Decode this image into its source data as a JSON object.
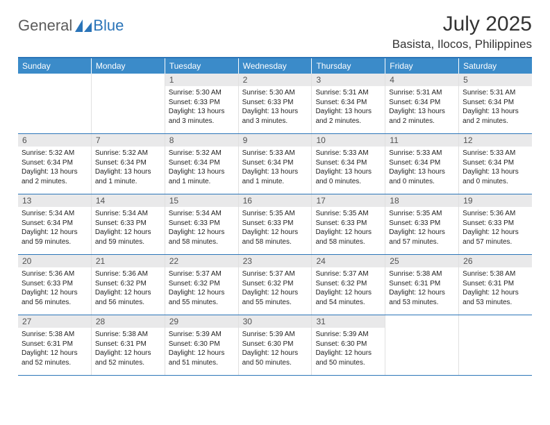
{
  "brand": {
    "part1": "General",
    "part2": "Blue"
  },
  "title": "July 2025",
  "location": "Basista, Ilocos, Philippines",
  "colors": {
    "header_bg": "#3b8bc9",
    "accent_border": "#2a74b8",
    "daynum_bg": "#e9e9ea",
    "daynum_fg": "#525252",
    "text": "#222222",
    "logo_gray": "#5b5b5b",
    "logo_blue": "#2a74b8"
  },
  "weekdays": [
    "Sunday",
    "Monday",
    "Tuesday",
    "Wednesday",
    "Thursday",
    "Friday",
    "Saturday"
  ],
  "weeks": [
    [
      null,
      null,
      {
        "n": "1",
        "sr": "5:30 AM",
        "ss": "6:33 PM",
        "dl": "13 hours and 3 minutes."
      },
      {
        "n": "2",
        "sr": "5:30 AM",
        "ss": "6:33 PM",
        "dl": "13 hours and 3 minutes."
      },
      {
        "n": "3",
        "sr": "5:31 AM",
        "ss": "6:34 PM",
        "dl": "13 hours and 2 minutes."
      },
      {
        "n": "4",
        "sr": "5:31 AM",
        "ss": "6:34 PM",
        "dl": "13 hours and 2 minutes."
      },
      {
        "n": "5",
        "sr": "5:31 AM",
        "ss": "6:34 PM",
        "dl": "13 hours and 2 minutes."
      }
    ],
    [
      {
        "n": "6",
        "sr": "5:32 AM",
        "ss": "6:34 PM",
        "dl": "13 hours and 2 minutes."
      },
      {
        "n": "7",
        "sr": "5:32 AM",
        "ss": "6:34 PM",
        "dl": "13 hours and 1 minute."
      },
      {
        "n": "8",
        "sr": "5:32 AM",
        "ss": "6:34 PM",
        "dl": "13 hours and 1 minute."
      },
      {
        "n": "9",
        "sr": "5:33 AM",
        "ss": "6:34 PM",
        "dl": "13 hours and 1 minute."
      },
      {
        "n": "10",
        "sr": "5:33 AM",
        "ss": "6:34 PM",
        "dl": "13 hours and 0 minutes."
      },
      {
        "n": "11",
        "sr": "5:33 AM",
        "ss": "6:34 PM",
        "dl": "13 hours and 0 minutes."
      },
      {
        "n": "12",
        "sr": "5:33 AM",
        "ss": "6:34 PM",
        "dl": "13 hours and 0 minutes."
      }
    ],
    [
      {
        "n": "13",
        "sr": "5:34 AM",
        "ss": "6:34 PM",
        "dl": "12 hours and 59 minutes."
      },
      {
        "n": "14",
        "sr": "5:34 AM",
        "ss": "6:33 PM",
        "dl": "12 hours and 59 minutes."
      },
      {
        "n": "15",
        "sr": "5:34 AM",
        "ss": "6:33 PM",
        "dl": "12 hours and 58 minutes."
      },
      {
        "n": "16",
        "sr": "5:35 AM",
        "ss": "6:33 PM",
        "dl": "12 hours and 58 minutes."
      },
      {
        "n": "17",
        "sr": "5:35 AM",
        "ss": "6:33 PM",
        "dl": "12 hours and 58 minutes."
      },
      {
        "n": "18",
        "sr": "5:35 AM",
        "ss": "6:33 PM",
        "dl": "12 hours and 57 minutes."
      },
      {
        "n": "19",
        "sr": "5:36 AM",
        "ss": "6:33 PM",
        "dl": "12 hours and 57 minutes."
      }
    ],
    [
      {
        "n": "20",
        "sr": "5:36 AM",
        "ss": "6:33 PM",
        "dl": "12 hours and 56 minutes."
      },
      {
        "n": "21",
        "sr": "5:36 AM",
        "ss": "6:32 PM",
        "dl": "12 hours and 56 minutes."
      },
      {
        "n": "22",
        "sr": "5:37 AM",
        "ss": "6:32 PM",
        "dl": "12 hours and 55 minutes."
      },
      {
        "n": "23",
        "sr": "5:37 AM",
        "ss": "6:32 PM",
        "dl": "12 hours and 55 minutes."
      },
      {
        "n": "24",
        "sr": "5:37 AM",
        "ss": "6:32 PM",
        "dl": "12 hours and 54 minutes."
      },
      {
        "n": "25",
        "sr": "5:38 AM",
        "ss": "6:31 PM",
        "dl": "12 hours and 53 minutes."
      },
      {
        "n": "26",
        "sr": "5:38 AM",
        "ss": "6:31 PM",
        "dl": "12 hours and 53 minutes."
      }
    ],
    [
      {
        "n": "27",
        "sr": "5:38 AM",
        "ss": "6:31 PM",
        "dl": "12 hours and 52 minutes."
      },
      {
        "n": "28",
        "sr": "5:38 AM",
        "ss": "6:31 PM",
        "dl": "12 hours and 52 minutes."
      },
      {
        "n": "29",
        "sr": "5:39 AM",
        "ss": "6:30 PM",
        "dl": "12 hours and 51 minutes."
      },
      {
        "n": "30",
        "sr": "5:39 AM",
        "ss": "6:30 PM",
        "dl": "12 hours and 50 minutes."
      },
      {
        "n": "31",
        "sr": "5:39 AM",
        "ss": "6:30 PM",
        "dl": "12 hours and 50 minutes."
      },
      null,
      null
    ]
  ],
  "labels": {
    "sunrise": "Sunrise:",
    "sunset": "Sunset:",
    "daylight": "Daylight:"
  }
}
